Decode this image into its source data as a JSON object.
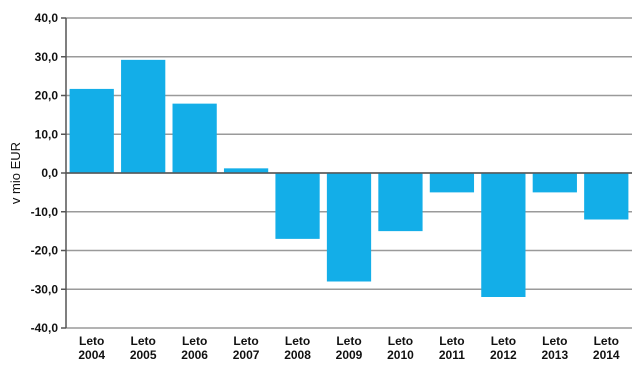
{
  "chart_data": {
    "type": "bar",
    "title": "",
    "xlabel": "",
    "ylabel": "v mio EUR",
    "ylim": [
      -40,
      40
    ],
    "yticks": [
      "-40,0",
      "-30,0",
      "-20,0",
      "-10,0",
      "0,0",
      "10,0",
      "20,0",
      "30,0",
      "40,0"
    ],
    "categories": [
      [
        "Leto",
        "2004"
      ],
      [
        "Leto",
        "2005"
      ],
      [
        "Leto",
        "2006"
      ],
      [
        "Leto",
        "2007"
      ],
      [
        "Leto",
        "2008"
      ],
      [
        "Leto",
        "2009"
      ],
      [
        "Leto",
        "2010"
      ],
      [
        "Leto",
        "2011"
      ],
      [
        "Leto",
        "2012"
      ],
      [
        "Leto",
        "2013"
      ],
      [
        "Leto",
        "2014"
      ]
    ],
    "values": [
      21.7,
      29.2,
      17.9,
      1.2,
      -17.0,
      -28.0,
      -15.0,
      -5.0,
      -32.0,
      -5.0,
      -12.0
    ],
    "grid": true,
    "legend": "none",
    "bar_color": "#13aee8",
    "grid_color": "#9a9a9a",
    "axis_color": "#555555"
  }
}
